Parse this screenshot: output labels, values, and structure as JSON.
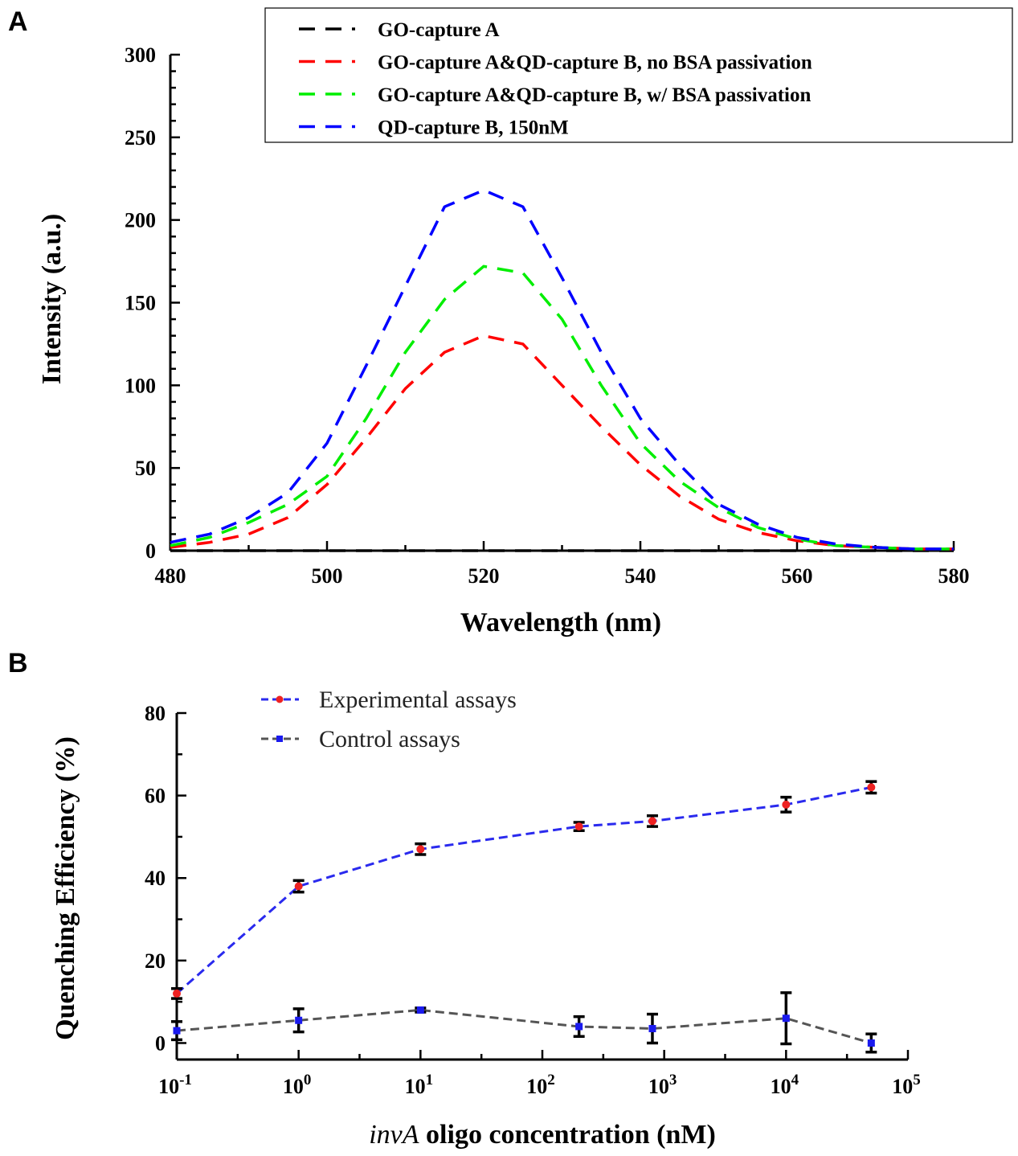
{
  "panel_a_label": "A",
  "panel_b_label": "B",
  "chart_data": [
    {
      "type": "line",
      "title": "",
      "xlabel": "Wavelength (nm)",
      "ylabel": "Intensity (a.u.)",
      "xlim": [
        480,
        580
      ],
      "ylim": [
        0,
        300
      ],
      "xticks": [
        "480",
        "500",
        "520",
        "540",
        "560",
        "580"
      ],
      "yticks": [
        "0",
        "50",
        "100",
        "150",
        "200",
        "250",
        "300"
      ],
      "legend_position": "top-right",
      "x": [
        480,
        485,
        490,
        495,
        500,
        505,
        510,
        515,
        520,
        525,
        530,
        535,
        540,
        545,
        550,
        555,
        560,
        565,
        570,
        575,
        580
      ],
      "series": [
        {
          "name": "GO-capture A",
          "color": "#000000",
          "values": [
            0,
            0,
            0,
            0,
            0,
            0,
            0,
            0,
            0,
            0,
            0,
            0,
            0,
            0,
            0,
            0,
            0,
            0,
            0,
            0,
            0
          ]
        },
        {
          "name": "GO-capture A&QD-capture B, no BSA passivation",
          "color": "#ff0000",
          "values": [
            2,
            5,
            10,
            20,
            40,
            68,
            98,
            120,
            130,
            125,
            100,
            75,
            52,
            33,
            19,
            11,
            6,
            3,
            2,
            1,
            1
          ]
        },
        {
          "name": "GO-capture A&QD-capture B, w/ BSA passivation",
          "color": "#00ee00",
          "values": [
            3,
            8,
            17,
            28,
            45,
            80,
            120,
            152,
            172,
            168,
            140,
            100,
            65,
            42,
            26,
            14,
            7,
            3,
            2,
            1,
            1
          ]
        },
        {
          "name": "QD-capture B, 150nM",
          "color": "#0000ff",
          "values": [
            5,
            10,
            20,
            35,
            65,
            112,
            160,
            208,
            218,
            208,
            165,
            120,
            80,
            52,
            28,
            16,
            8,
            4,
            2,
            1,
            1
          ]
        }
      ]
    },
    {
      "type": "line",
      "title": "",
      "xlabel_italic": "invA",
      "xlabel_rest": " oligo concentration (nM)",
      "ylabel": "Quenching Efficiency (%)",
      "xscale": "log",
      "xlim_log10": [
        -1,
        5
      ],
      "ylim": [
        -4,
        80
      ],
      "xticks": [
        {
          "base": "10",
          "exp": "-1"
        },
        {
          "base": "10",
          "exp": "0"
        },
        {
          "base": "10",
          "exp": "1"
        },
        {
          "base": "10",
          "exp": "2"
        },
        {
          "base": "10",
          "exp": "3"
        },
        {
          "base": "10",
          "exp": "4"
        },
        {
          "base": "10",
          "exp": "5"
        }
      ],
      "yticks": [
        "0",
        "20",
        "40",
        "60",
        "80"
      ],
      "legend_position": "top-left",
      "x": [
        0.1,
        1,
        10,
        200,
        800,
        10000,
        50000
      ],
      "series": [
        {
          "name": "Experimental assays",
          "line_color": "#2a2aee",
          "marker_color": "#ee2222",
          "values": [
            12,
            38,
            47,
            52.5,
            53.8,
            57.8,
            62
          ],
          "errors": [
            1.2,
            1.4,
            1.3,
            1.0,
            1.3,
            1.8,
            1.4
          ]
        },
        {
          "name": "Control assays",
          "line_color": "#555555",
          "marker_color": "#1a1aee",
          "values": [
            3,
            5.5,
            8,
            4,
            3.5,
            6,
            0
          ],
          "errors": [
            2.2,
            2.8,
            0.5,
            2.4,
            3.5,
            6.2,
            2.2
          ]
        }
      ]
    }
  ]
}
